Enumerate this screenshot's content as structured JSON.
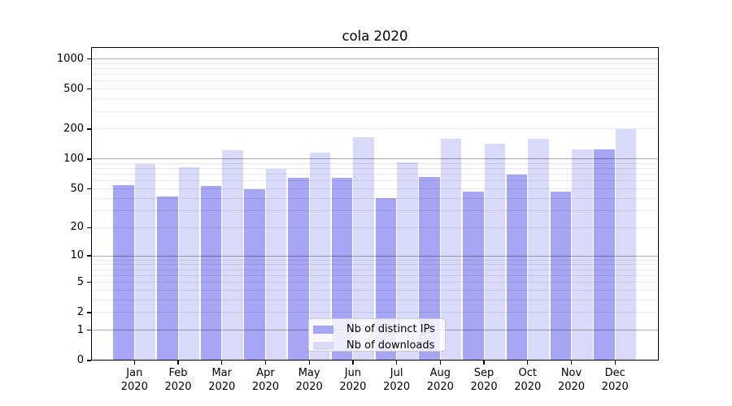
{
  "chart_data": {
    "type": "bar",
    "title": "cola 2020",
    "categories": [
      "Jan 2020",
      "Feb 2020",
      "Mar 2020",
      "Apr 2020",
      "May 2020",
      "Jun 2020",
      "Jul 2020",
      "Aug 2020",
      "Sep 2020",
      "Oct 2020",
      "Nov 2020",
      "Dec 2020"
    ],
    "series": [
      {
        "name": "Nb of distinct IPs",
        "color": "#a6a6f4",
        "values": [
          55,
          42,
          54,
          50,
          65,
          65,
          40,
          66,
          47,
          70,
          47,
          124
        ]
      },
      {
        "name": "Nb of downloads",
        "color": "#d9d9f9",
        "values": [
          89,
          83,
          123,
          79,
          117,
          165,
          92,
          158,
          142,
          158,
          126,
          200
        ]
      }
    ],
    "xlabel": "",
    "ylabel": "",
    "yscale": "log1p",
    "yticks": [
      0,
      1,
      2,
      5,
      10,
      20,
      50,
      100,
      200,
      500,
      1000
    ],
    "ylim": [
      0,
      1300
    ],
    "grid": true,
    "grid_major_at": [
      1,
      10,
      100,
      1000
    ],
    "legend_position": "lower center inside",
    "background": "#ffffff"
  }
}
